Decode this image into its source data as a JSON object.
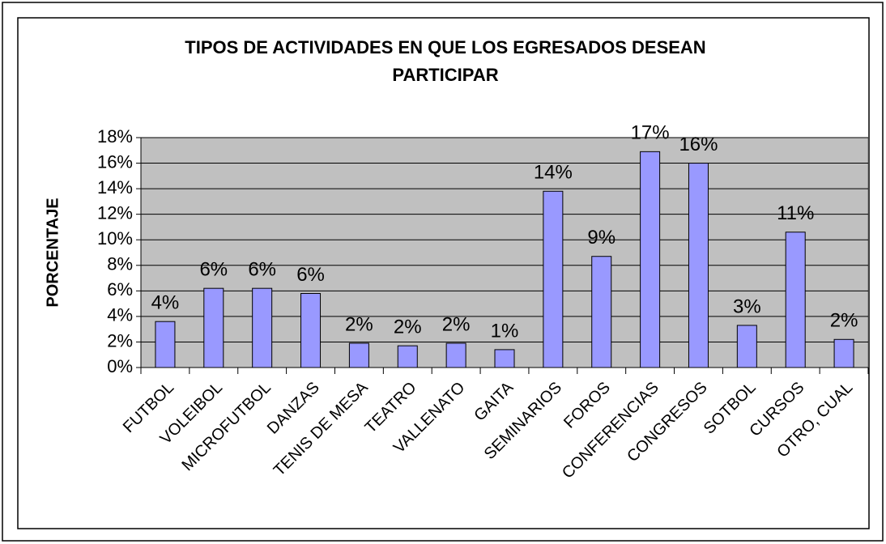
{
  "chart_data": {
    "type": "bar",
    "title": "TIPOS DE ACTIVIDADES EN QUE LOS EGRESADOS DESEAN PARTICIPAR",
    "y_label": "PORCENTAJE",
    "categories": [
      "FUTBOL",
      "VOLEIBOL",
      "MICROFUTBOL",
      "DANZAS",
      "TENIS DE MESA",
      "TEATRO",
      "VALLENATO",
      "GAITA",
      "SEMINARIOS",
      "FOROS",
      "CONFERENCIAS",
      "CONGRESOS",
      "SOTBOL",
      "CURSOS",
      "OTRO, CUAL"
    ],
    "values": [
      3.6,
      6.2,
      6.2,
      5.8,
      1.9,
      1.7,
      1.9,
      1.4,
      13.8,
      8.7,
      16.9,
      16.0,
      3.3,
      10.6,
      2.2
    ],
    "value_labels": [
      "4%",
      "6%",
      "6%",
      "6%",
      "2%",
      "2%",
      "2%",
      "1%",
      "14%",
      "9%",
      "17%",
      "16%",
      "3%",
      "11%",
      "2%"
    ],
    "color": "#9999ff",
    "ylim": [
      0,
      18
    ],
    "yticks": [
      {
        "value": 0,
        "label": "0%"
      },
      {
        "value": 2,
        "label": "2%"
      },
      {
        "value": 4,
        "label": "4%"
      },
      {
        "value": 6,
        "label": "6%"
      },
      {
        "value": 8,
        "label": "8%"
      },
      {
        "value": 10,
        "label": "10%"
      },
      {
        "value": 12,
        "label": "12%"
      },
      {
        "value": 14,
        "label": "14%"
      },
      {
        "value": 16,
        "label": "16%"
      },
      {
        "value": 18,
        "label": "18%"
      }
    ],
    "grid": true
  }
}
